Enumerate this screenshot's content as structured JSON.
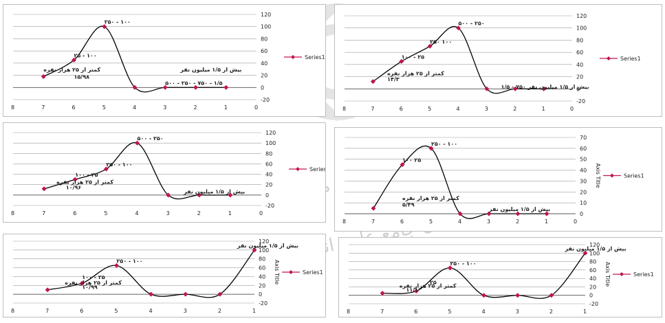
{
  "watermark": {
    "line1": "پژوهشگاه علوم انسانی و مطالعات فرهنگی",
    "line2": "پرتال جامع علوم انسانی"
  },
  "colors": {
    "line": "#000000",
    "marker": "#c0154a",
    "grid": "#9e9e9e",
    "axis": "#555555",
    "text": "#222222"
  },
  "chart_data": [
    {
      "type": "line",
      "categories": [
        "7",
        "6",
        "5",
        "4",
        "3",
        "2",
        "1"
      ],
      "series": [
        {
          "name": "Series1",
          "values": [
            18,
            45,
            100,
            0,
            0,
            0,
            0
          ]
        }
      ],
      "xticks": [
        "8",
        "7",
        "6",
        "5",
        "4",
        "3",
        "2",
        "1",
        "0"
      ],
      "yticks": [
        "-20",
        "0",
        "20",
        "40",
        "60",
        "80",
        "100",
        "120"
      ],
      "ylim": [
        -20,
        120
      ],
      "ylabel": "",
      "annotations": [
        {
          "text": "۲۵۰ - ۱۰۰",
          "x": 5,
          "y": 100
        },
        {
          "text": "۲۵ - ۱۰۰",
          "x": 6,
          "y": 45
        },
        {
          "text": "کمتر از ۲۵ هزار نفره",
          "x": 7,
          "y": 22
        },
        {
          "text": "۱۵/۹۸",
          "x": 6,
          "y": 10
        },
        {
          "text": "بیش از ۱/۵ میلیون نفر",
          "x": 2.5,
          "y": 22
        },
        {
          "text": "۵۰۰ - ۲۵۰ - ۷۵۰ - ۱/۵",
          "x": 3,
          "y": 0
        }
      ]
    },
    {
      "type": "line",
      "categories": [
        "7",
        "6",
        "5",
        "4",
        "3",
        "2",
        "1"
      ],
      "series": [
        {
          "name": "Series1",
          "values": [
            12,
            45,
            70,
            100,
            0,
            0,
            0
          ]
        }
      ],
      "xticks": [
        "8",
        "7",
        "6",
        "5",
        "4",
        "3",
        "2",
        "1",
        "0"
      ],
      "yticks": [
        "-20",
        "0",
        "20",
        "40",
        "60",
        "80",
        "100",
        "120"
      ],
      "ylim": [
        -20,
        120
      ],
      "ylabel": "",
      "annotations": [
        {
          "text": "۵۰۰ - ۲۵۰",
          "x": 4,
          "y": 100
        },
        {
          "text": "۲۵۰ ۱۰۰",
          "x": 5,
          "y": 70
        },
        {
          "text": "۱۰۰ - ۲۵",
          "x": 6,
          "y": 45
        },
        {
          "text": "کمتر از ۲۵ هزار نفره",
          "x": 6.5,
          "y": 18
        },
        {
          "text": "۱۴/۳",
          "x": 6.5,
          "y": 8
        },
        {
          "text": "بیش از ۱/۵ میلیون نفر ۷۵۰ - ۱/۵",
          "x": 2.5,
          "y": -4
        }
      ]
    },
    {
      "type": "line",
      "categories": [
        "7",
        "6",
        "5",
        "4",
        "3",
        "2",
        "1"
      ],
      "series": [
        {
          "name": "Series1",
          "values": [
            12,
            30,
            50,
            100,
            0,
            0,
            0
          ]
        }
      ],
      "xticks": [
        "8",
        "7",
        "6",
        "5",
        "4",
        "3",
        "2",
        "1",
        "0"
      ],
      "yticks": [
        "-20",
        "0",
        "20",
        "40",
        "60",
        "80",
        "100",
        "120"
      ],
      "ylim": [
        -20,
        120
      ],
      "ylabel": "",
      "annotations": [
        {
          "text": "۵۰۰ - ۲۵۰",
          "x": 4,
          "y": 100
        },
        {
          "text": "۲۵۰ - ۱۰۰",
          "x": 5,
          "y": 50
        },
        {
          "text": "۱۰۰ - ۲۵",
          "x": 6,
          "y": 30
        },
        {
          "text": "کمتر از ۲۵ هزار نفره",
          "x": 6.6,
          "y": 16
        },
        {
          "text": "۱۰/۹۶",
          "x": 6.3,
          "y": 6
        },
        {
          "text": "بیش از ۱/۵ میلیون نفر",
          "x": 2.5,
          "y": -2
        }
      ]
    },
    {
      "type": "line",
      "categories": [
        "7",
        "6",
        "5",
        "4",
        "3",
        "2",
        "1"
      ],
      "series": [
        {
          "name": "Series1",
          "values": [
            5,
            45,
            60,
            0,
            0,
            0,
            0
          ]
        }
      ],
      "xticks": [
        "8",
        "7",
        "6",
        "5",
        "4",
        "3",
        "2",
        "1",
        "0"
      ],
      "yticks": [
        "0",
        "10",
        "20",
        "30",
        "40",
        "50",
        "60",
        "70"
      ],
      "ylim": [
        0,
        70
      ],
      "ylabel": "Axis Title",
      "annotations": [
        {
          "text": "۲۵۰ - ۱۰۰",
          "x": 5,
          "y": 60
        },
        {
          "text": "۱۰۰ ۲۵",
          "x": 6,
          "y": 45
        },
        {
          "text": "کمتر از ۲۵ هزار نفره",
          "x": 6,
          "y": 10
        },
        {
          "text": "۵/۴۹",
          "x": 6,
          "y": 4
        },
        {
          "text": "بیش از ۱/۵ میلیون نفر",
          "x": 3,
          "y": 0
        }
      ]
    },
    {
      "type": "line",
      "categories": [
        "7",
        "6",
        "5",
        "4",
        "3",
        "2",
        "1"
      ],
      "series": [
        {
          "name": "Series1",
          "values": [
            10,
            25,
            65,
            0,
            0,
            0,
            100
          ]
        }
      ],
      "xticks": [
        "8",
        "7",
        "6",
        "5",
        "4",
        "3",
        "2",
        "1"
      ],
      "yticks": [
        "-20",
        "0",
        "20",
        "40",
        "60",
        "80",
        "100",
        "120"
      ],
      "ylim": [
        -20,
        120
      ],
      "ylabel": "Axis Title",
      "annotations": [
        {
          "text": "بیش از ۱/۵ میلیون نفر",
          "x": 1.5,
          "y": 100
        },
        {
          "text": "۲۵۰ - ۱۰۰",
          "x": 5,
          "y": 65
        },
        {
          "text": "۱۰۰ - ۲۵",
          "x": 6,
          "y": 28
        },
        {
          "text": "کمتر از ۲۵ هزار نفره",
          "x": 6.5,
          "y": 16
        },
        {
          "text": "۱۰/۹۹",
          "x": 6,
          "y": 6
        }
      ]
    },
    {
      "type": "line",
      "categories": [
        "7",
        "6",
        "5",
        "4",
        "3",
        "2",
        "1"
      ],
      "series": [
        {
          "name": "Series1",
          "values": [
            5,
            10,
            65,
            0,
            0,
            0,
            100
          ]
        }
      ],
      "xticks": [
        "8",
        "7",
        "6",
        "5",
        "4",
        "3",
        "2",
        "1"
      ],
      "yticks": [
        "-20",
        "0",
        "20",
        "40",
        "60",
        "80",
        "100",
        "120"
      ],
      "ylim": [
        -20,
        120
      ],
      "ylabel": "Axis Title",
      "annotations": [
        {
          "text": "بیش از ۱/۵ میلیون نفر",
          "x": 1.6,
          "y": 100
        },
        {
          "text": "۲۵۰ - ۱۰۰",
          "x": 5,
          "y": 65
        },
        {
          "text": "۲۵",
          "x": 5.6,
          "y": 20
        },
        {
          "text": "کمتر از ۲۵ هزار نفره",
          "x": 6.5,
          "y": 12
        },
        {
          "text": "۱۱/۱",
          "x": 6.3,
          "y": 2
        }
      ]
    }
  ]
}
